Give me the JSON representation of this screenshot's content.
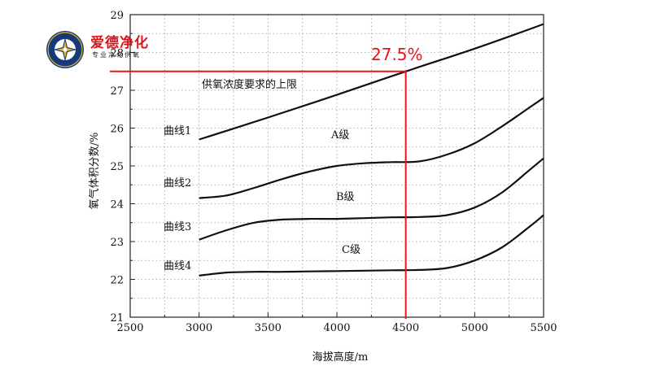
{
  "logo": {
    "title": "爱德净化",
    "subtitle": "专业净化供氧",
    "seal_text": "AIDE PURIFICATION TECHNOLOGY"
  },
  "colors": {
    "curve": "#111111",
    "highlight": "#e8141b",
    "logo_red": "#d9161c",
    "logo_blue": "#16397a",
    "logo_gold": "#e6b31e"
  },
  "chart_data": {
    "type": "line",
    "xlabel": "海拔高度/m",
    "ylabel": "氧气体积分数/%",
    "xlim": [
      2500,
      5500
    ],
    "ylim": [
      21,
      29
    ],
    "xticks": [
      2500,
      3000,
      3500,
      4000,
      4500,
      5000,
      5500
    ],
    "yticks": [
      21,
      22,
      23,
      24,
      25,
      26,
      27,
      28,
      29
    ],
    "grid": true,
    "series": [
      {
        "name": "曲线1",
        "x": [
          3000,
          3500,
          4000,
          4500,
          5000,
          5500
        ],
        "y": [
          25.7,
          26.28,
          26.88,
          27.5,
          28.1,
          28.75
        ]
      },
      {
        "name": "曲线2",
        "x": [
          3000,
          3200,
          3400,
          3600,
          3800,
          4000,
          4200,
          4400,
          4600,
          4800,
          5000,
          5200,
          5400,
          5500
        ],
        "y": [
          24.15,
          24.22,
          24.42,
          24.65,
          24.85,
          25.0,
          25.07,
          25.1,
          25.12,
          25.3,
          25.6,
          26.05,
          26.55,
          26.8
        ]
      },
      {
        "name": "曲线3",
        "x": [
          3000,
          3200,
          3400,
          3600,
          3800,
          4000,
          4200,
          4400,
          4600,
          4800,
          5000,
          5200,
          5400,
          5500
        ],
        "y": [
          23.05,
          23.3,
          23.5,
          23.58,
          23.6,
          23.6,
          23.62,
          23.64,
          23.65,
          23.7,
          23.9,
          24.3,
          24.9,
          25.2
        ]
      },
      {
        "name": "曲线4",
        "x": [
          3000,
          3200,
          3400,
          3600,
          3800,
          4000,
          4200,
          4400,
          4600,
          4800,
          5000,
          5200,
          5400,
          5500
        ],
        "y": [
          22.1,
          22.18,
          22.2,
          22.2,
          22.21,
          22.22,
          22.23,
          22.24,
          22.25,
          22.3,
          22.5,
          22.85,
          23.4,
          23.7
        ]
      }
    ],
    "region_labels": [
      "A级",
      "B级",
      "C级"
    ],
    "limit_label": "供氧浓度要求的上限",
    "highlight": {
      "label": "27.5%",
      "x": 4500,
      "y": 27.5
    }
  }
}
